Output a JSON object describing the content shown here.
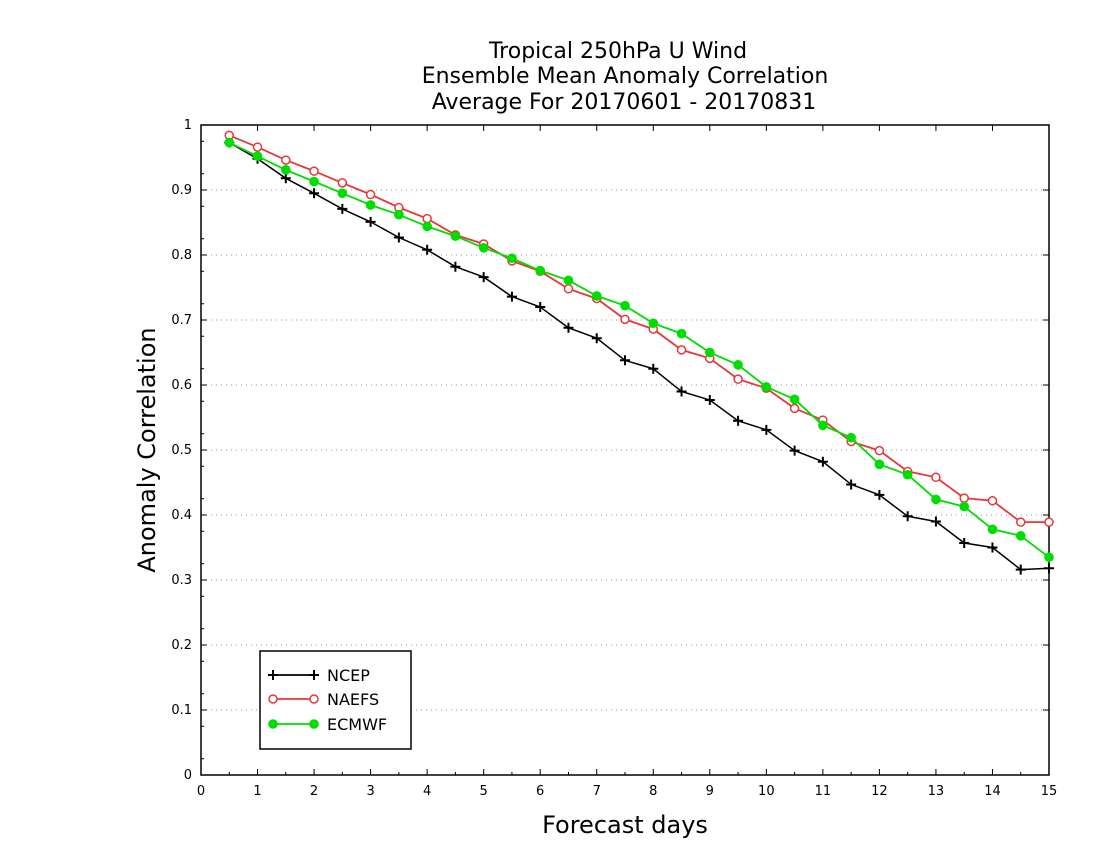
{
  "chart_data": {
    "type": "line",
    "title_lines": [
      "Tropical 250hPa U Wind",
      "Ensemble Mean Anomaly Correlation",
      "Average For 20170601 - 20170831"
    ],
    "xlabel": "Forecast days",
    "ylabel": "Anomaly Correlation",
    "xlim": [
      0,
      15
    ],
    "ylim": [
      0,
      1
    ],
    "x_ticks": [
      "0",
      "1",
      "2",
      "3",
      "4",
      "5",
      "6",
      "7",
      "8",
      "9",
      "10",
      "11",
      "12",
      "13",
      "14",
      "15"
    ],
    "y_ticks": [
      "0",
      "0.1",
      "0.2",
      "0.3",
      "0.4",
      "0.5",
      "0.6",
      "0.7",
      "0.8",
      "0.9",
      "1"
    ],
    "grid": true,
    "legend_position": "bottom-left",
    "x": [
      0.5,
      1,
      1.5,
      2,
      2.5,
      3,
      3.5,
      4,
      4.5,
      5,
      5.5,
      6,
      6.5,
      7,
      7.5,
      8,
      8.5,
      9,
      9.5,
      10,
      10.5,
      11,
      11.5,
      12,
      12.5,
      13,
      13.5,
      14,
      14.5,
      15
    ],
    "series": [
      {
        "name": "NCEP",
        "color": "#000000",
        "marker": "plus",
        "values": [
          0.973,
          0.948,
          0.918,
          0.895,
          0.871,
          0.851,
          0.827,
          0.808,
          0.782,
          0.766,
          0.736,
          0.72,
          0.688,
          0.672,
          0.638,
          0.625,
          0.59,
          0.577,
          0.545,
          0.531,
          0.499,
          0.482,
          0.447,
          0.431,
          0.398,
          0.39,
          0.357,
          0.35,
          0.316,
          0.318
        ]
      },
      {
        "name": "NAEFS",
        "color": "#e8373b",
        "marker": "open-circle",
        "values": [
          0.984,
          0.966,
          0.946,
          0.929,
          0.911,
          0.893,
          0.873,
          0.856,
          0.831,
          0.817,
          0.791,
          0.775,
          0.748,
          0.733,
          0.701,
          0.686,
          0.654,
          0.641,
          0.609,
          0.595,
          0.564,
          0.546,
          0.513,
          0.499,
          0.467,
          0.458,
          0.426,
          0.422,
          0.389,
          0.389
        ]
      },
      {
        "name": "ECMWF",
        "color": "#00dd00",
        "marker": "filled-circle",
        "values": [
          0.973,
          0.952,
          0.931,
          0.913,
          0.895,
          0.877,
          0.862,
          0.844,
          0.829,
          0.811,
          0.795,
          0.776,
          0.761,
          0.737,
          0.722,
          0.695,
          0.679,
          0.65,
          0.631,
          0.597,
          0.578,
          0.538,
          0.519,
          0.478,
          0.462,
          0.424,
          0.413,
          0.378,
          0.368,
          0.335
        ]
      }
    ]
  }
}
